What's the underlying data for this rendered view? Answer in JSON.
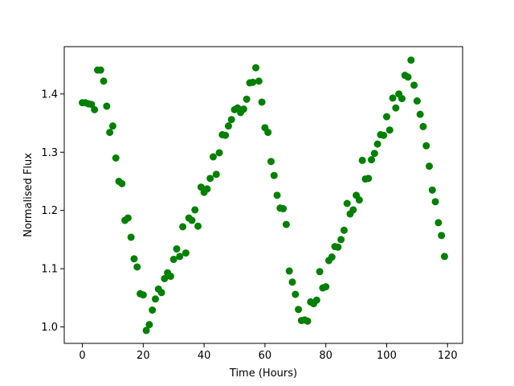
{
  "chart_data": {
    "type": "scatter",
    "title": "",
    "xlabel": "Time (Hours)",
    "ylabel": "Normalised Flux",
    "xlim": [
      -5.95,
      124.95
    ],
    "ylim": [
      0.9718,
      1.4812
    ],
    "xticks": [
      0,
      20,
      40,
      60,
      80,
      100,
      120
    ],
    "xtick_labels": [
      "0",
      "20",
      "40",
      "60",
      "80",
      "100",
      "120"
    ],
    "yticks": [
      1.0,
      1.1,
      1.2,
      1.3,
      1.4
    ],
    "ytick_labels": [
      "1.0",
      "1.1",
      "1.2",
      "1.3",
      "1.4"
    ],
    "grid": false,
    "marker_color": "#008000",
    "series": [
      {
        "x": [
          0,
          1,
          2,
          3,
          4,
          5,
          6,
          7,
          8,
          9,
          10,
          11,
          12,
          13,
          14,
          15,
          16,
          17,
          18,
          19,
          20,
          21,
          22,
          23,
          24,
          25,
          26,
          27,
          28,
          29,
          30,
          31,
          32,
          33,
          34,
          35,
          36,
          37,
          38,
          39,
          40,
          41,
          42,
          43,
          44,
          45,
          46,
          47,
          48,
          49,
          50,
          51,
          52,
          53,
          54,
          55,
          56,
          57,
          58,
          59,
          60,
          61,
          62,
          63,
          64,
          65,
          66,
          67,
          68,
          69,
          70,
          71,
          72,
          73,
          74,
          75,
          76,
          77,
          78,
          79,
          80,
          81,
          82,
          83,
          84,
          85,
          86,
          87,
          88,
          89,
          90,
          91,
          92,
          93,
          94,
          95,
          96,
          97,
          98,
          99,
          100,
          101,
          102,
          103,
          104,
          105,
          106,
          107,
          108,
          109,
          110,
          111,
          112,
          113,
          114,
          115,
          116,
          117,
          118,
          119
        ],
        "y": [
          1.385,
          1.385,
          1.383,
          1.382,
          1.373,
          1.441,
          1.441,
          1.422,
          1.379,
          1.334,
          1.345,
          1.29,
          1.25,
          1.246,
          1.183,
          1.187,
          1.154,
          1.117,
          1.103,
          1.057,
          1.055,
          0.994,
          1.004,
          1.029,
          1.048,
          1.065,
          1.059,
          1.083,
          1.093,
          1.087,
          1.116,
          1.134,
          1.121,
          1.172,
          1.127,
          1.187,
          1.183,
          1.201,
          1.173,
          1.24,
          1.231,
          1.237,
          1.255,
          1.292,
          1.262,
          1.299,
          1.33,
          1.329,
          1.345,
          1.356,
          1.373,
          1.376,
          1.368,
          1.374,
          1.391,
          1.419,
          1.42,
          1.445,
          1.422,
          1.386,
          1.342,
          1.334,
          1.284,
          1.26,
          1.226,
          1.204,
          1.203,
          1.176,
          1.096,
          1.077,
          1.056,
          1.03,
          1.011,
          1.012,
          1.01,
          1.043,
          1.04,
          1.046,
          1.095,
          1.067,
          1.069,
          1.114,
          1.12,
          1.138,
          1.137,
          1.15,
          1.166,
          1.212,
          1.194,
          1.201,
          1.226,
          1.218,
          1.286,
          1.254,
          1.255,
          1.287,
          1.298,
          1.314,
          1.33,
          1.329,
          1.361,
          1.338,
          1.393,
          1.376,
          1.4,
          1.392,
          1.432,
          1.429,
          1.458,
          1.415,
          1.388,
          1.365,
          1.344,
          1.311,
          1.276,
          1.235,
          1.215,
          1.179,
          1.157,
          1.121
        ]
      }
    ]
  }
}
